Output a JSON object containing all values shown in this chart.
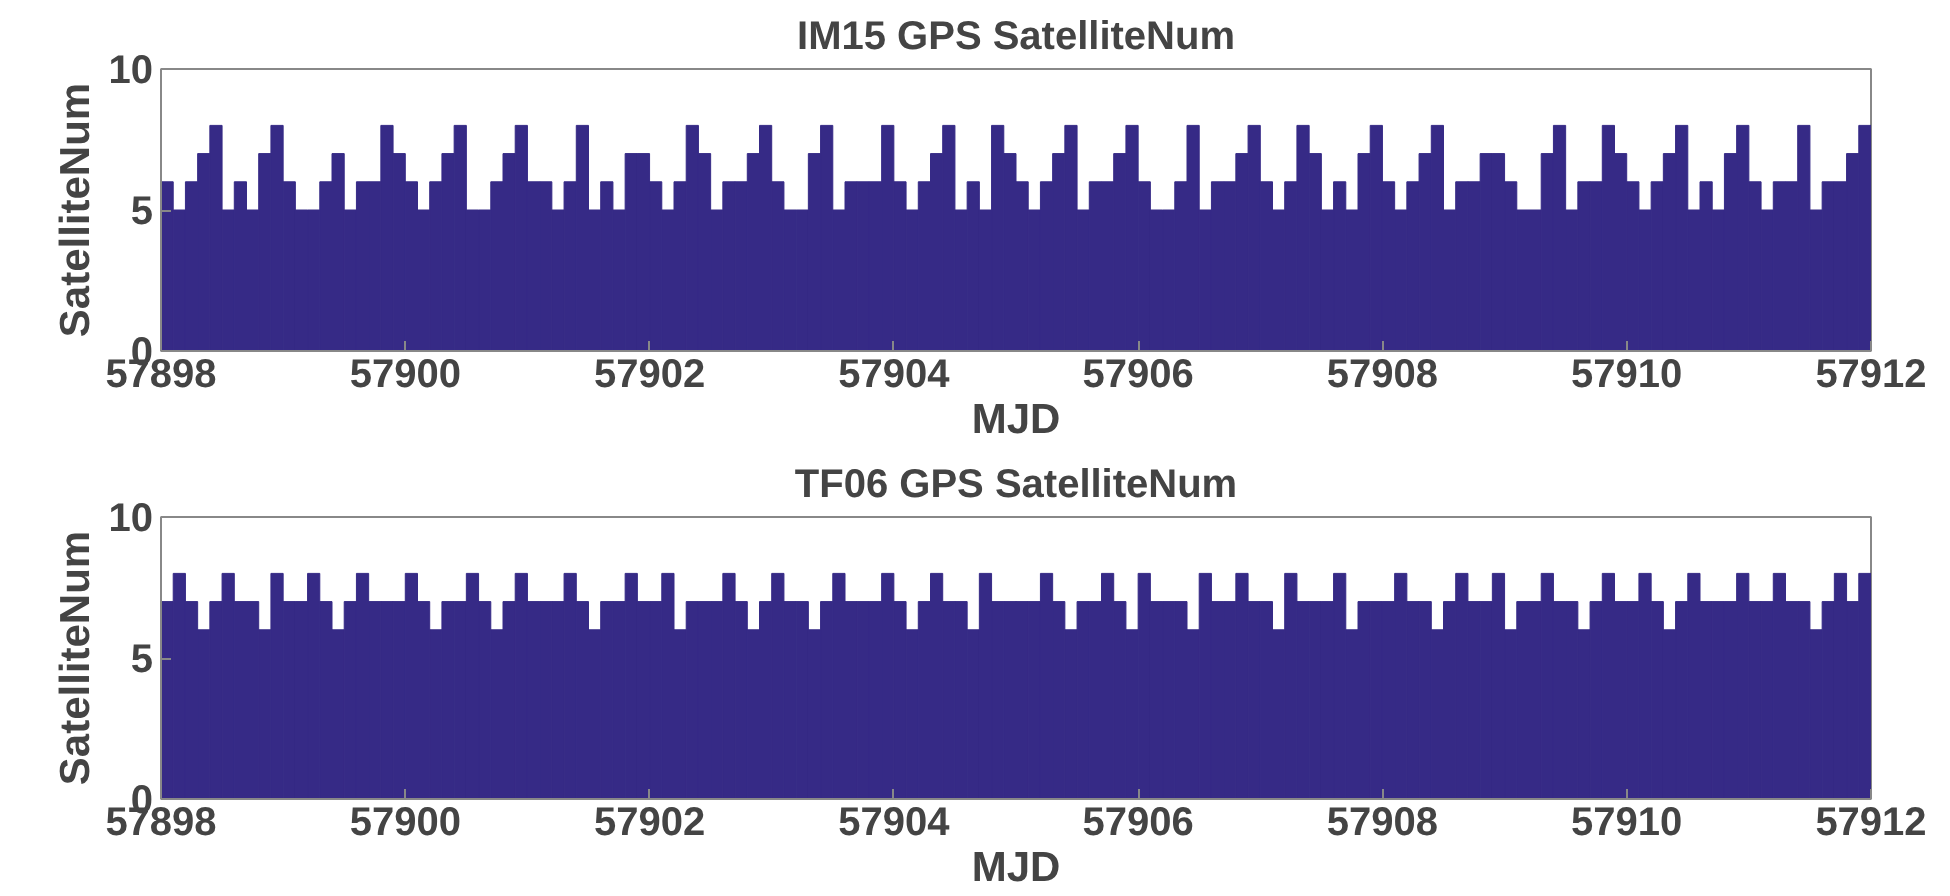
{
  "chart_data": [
    {
      "type": "bar",
      "title": "IM15 GPS SatelliteNum",
      "xlabel": "MJD",
      "ylabel": "SatelliteNum",
      "x": [
        57898.05,
        57898.15,
        57898.25,
        57898.35,
        57898.45,
        57898.55,
        57898.65,
        57898.75,
        57898.85,
        57898.95,
        57899.05,
        57899.15,
        57899.25,
        57899.35,
        57899.45,
        57899.55,
        57899.65,
        57899.75,
        57899.85,
        57899.95,
        57900.05,
        57900.15,
        57900.25,
        57900.35,
        57900.45,
        57900.55,
        57900.65,
        57900.75,
        57900.85,
        57900.95,
        57901.05,
        57901.15,
        57901.25,
        57901.35,
        57901.45,
        57901.55,
        57901.65,
        57901.75,
        57901.85,
        57901.95,
        57902.05,
        57902.15,
        57902.25,
        57902.35,
        57902.45,
        57902.55,
        57902.65,
        57902.75,
        57902.85,
        57902.95,
        57903.05,
        57903.15,
        57903.25,
        57903.35,
        57903.45,
        57903.55,
        57903.65,
        57903.75,
        57903.85,
        57903.95,
        57904.05,
        57904.15,
        57904.25,
        57904.35,
        57904.45,
        57904.55,
        57904.65,
        57904.75,
        57904.85,
        57904.95,
        57905.05,
        57905.15,
        57905.25,
        57905.35,
        57905.45,
        57905.55,
        57905.65,
        57905.75,
        57905.85,
        57905.95,
        57906.05,
        57906.15,
        57906.25,
        57906.35,
        57906.45,
        57906.55,
        57906.65,
        57906.75,
        57906.85,
        57906.95,
        57907.05,
        57907.15,
        57907.25,
        57907.35,
        57907.45,
        57907.55,
        57907.65,
        57907.75,
        57907.85,
        57907.95,
        57908.05,
        57908.15,
        57908.25,
        57908.35,
        57908.45,
        57908.55,
        57908.65,
        57908.75,
        57908.85,
        57908.95,
        57909.05,
        57909.15,
        57909.25,
        57909.35,
        57909.45,
        57909.55,
        57909.65,
        57909.75,
        57909.85,
        57909.95,
        57910.05,
        57910.15,
        57910.25,
        57910.35,
        57910.45,
        57910.55,
        57910.65,
        57910.75,
        57910.85,
        57910.95,
        57911.05,
        57911.15,
        57911.25,
        57911.35,
        57911.45,
        57911.55,
        57911.65,
        57911.75,
        57911.85,
        57911.95
      ],
      "series": [
        {
          "color": "#362a86",
          "values": [
            6,
            5,
            6,
            7,
            8,
            5,
            6,
            5,
            7,
            8,
            6,
            5,
            5,
            6,
            7,
            5,
            6,
            6,
            8,
            7,
            6,
            5,
            6,
            7,
            8,
            5,
            5,
            6,
            7,
            8,
            6,
            6,
            5,
            6,
            8,
            5,
            6,
            5,
            7,
            7,
            6,
            5,
            6,
            8,
            7,
            5,
            6,
            6,
            7,
            8,
            6,
            5,
            5,
            7,
            8,
            5,
            6,
            6,
            6,
            8,
            6,
            5,
            6,
            7,
            8,
            5,
            6,
            5,
            8,
            7,
            6,
            5,
            6,
            7,
            8,
            5,
            6,
            6,
            7,
            8,
            6,
            5,
            5,
            6,
            8,
            5,
            6,
            6,
            7,
            8,
            6,
            5,
            6,
            8,
            7,
            5,
            6,
            5,
            7,
            8,
            6,
            5,
            6,
            7,
            8,
            5,
            6,
            6,
            7,
            7,
            6,
            5,
            5,
            7,
            8,
            5,
            6,
            6,
            8,
            7,
            6,
            5,
            6,
            7,
            8,
            5,
            6,
            5,
            7,
            8,
            6,
            5,
            6,
            6,
            8,
            5,
            6,
            6,
            7,
            8
          ]
        }
      ],
      "xlim": [
        57898,
        57912
      ],
      "xticks": [
        57898,
        57900,
        57902,
        57904,
        57906,
        57908,
        57910,
        57912
      ],
      "ylim": [
        0,
        10
      ],
      "yticks": [
        0,
        5,
        10
      ],
      "grid": false
    },
    {
      "type": "bar",
      "title": "TF06 GPS SatelliteNum",
      "xlabel": "MJD",
      "ylabel": "SatelliteNum",
      "x": [
        57898.05,
        57898.15,
        57898.25,
        57898.35,
        57898.45,
        57898.55,
        57898.65,
        57898.75,
        57898.85,
        57898.95,
        57899.05,
        57899.15,
        57899.25,
        57899.35,
        57899.45,
        57899.55,
        57899.65,
        57899.75,
        57899.85,
        57899.95,
        57900.05,
        57900.15,
        57900.25,
        57900.35,
        57900.45,
        57900.55,
        57900.65,
        57900.75,
        57900.85,
        57900.95,
        57901.05,
        57901.15,
        57901.25,
        57901.35,
        57901.45,
        57901.55,
        57901.65,
        57901.75,
        57901.85,
        57901.95,
        57902.05,
        57902.15,
        57902.25,
        57902.35,
        57902.45,
        57902.55,
        57902.65,
        57902.75,
        57902.85,
        57902.95,
        57903.05,
        57903.15,
        57903.25,
        57903.35,
        57903.45,
        57903.55,
        57903.65,
        57903.75,
        57903.85,
        57903.95,
        57904.05,
        57904.15,
        57904.25,
        57904.35,
        57904.45,
        57904.55,
        57904.65,
        57904.75,
        57904.85,
        57904.95,
        57905.05,
        57905.15,
        57905.25,
        57905.35,
        57905.45,
        57905.55,
        57905.65,
        57905.75,
        57905.85,
        57905.95,
        57906.05,
        57906.15,
        57906.25,
        57906.35,
        57906.45,
        57906.55,
        57906.65,
        57906.75,
        57906.85,
        57906.95,
        57907.05,
        57907.15,
        57907.25,
        57907.35,
        57907.45,
        57907.55,
        57907.65,
        57907.75,
        57907.85,
        57907.95,
        57908.05,
        57908.15,
        57908.25,
        57908.35,
        57908.45,
        57908.55,
        57908.65,
        57908.75,
        57908.85,
        57908.95,
        57909.05,
        57909.15,
        57909.25,
        57909.35,
        57909.45,
        57909.55,
        57909.65,
        57909.75,
        57909.85,
        57909.95,
        57910.05,
        57910.15,
        57910.25,
        57910.35,
        57910.45,
        57910.55,
        57910.65,
        57910.75,
        57910.85,
        57910.95,
        57911.05,
        57911.15,
        57911.25,
        57911.35,
        57911.45,
        57911.55,
        57911.65,
        57911.75,
        57911.85,
        57911.95
      ],
      "series": [
        {
          "color": "#362a86",
          "values": [
            7,
            8,
            7,
            6,
            7,
            8,
            7,
            7,
            6,
            8,
            7,
            7,
            8,
            7,
            6,
            7,
            8,
            7,
            7,
            7,
            8,
            7,
            6,
            7,
            7,
            8,
            7,
            6,
            7,
            8,
            7,
            7,
            7,
            8,
            7,
            6,
            7,
            7,
            8,
            7,
            7,
            8,
            6,
            7,
            7,
            7,
            8,
            7,
            6,
            7,
            8,
            7,
            7,
            6,
            7,
            8,
            7,
            7,
            7,
            8,
            7,
            6,
            7,
            8,
            7,
            7,
            6,
            8,
            7,
            7,
            7,
            7,
            8,
            7,
            6,
            7,
            7,
            8,
            7,
            6,
            8,
            7,
            7,
            7,
            6,
            8,
            7,
            7,
            8,
            7,
            7,
            6,
            8,
            7,
            7,
            7,
            8,
            6,
            7,
            7,
            7,
            8,
            7,
            7,
            6,
            7,
            8,
            7,
            7,
            8,
            6,
            7,
            7,
            8,
            7,
            7,
            6,
            7,
            8,
            7,
            7,
            8,
            7,
            6,
            7,
            8,
            7,
            7,
            7,
            8,
            7,
            7,
            8,
            7,
            7,
            6,
            7,
            8,
            7,
            8
          ]
        }
      ],
      "xlim": [
        57898,
        57912
      ],
      "xticks": [
        57898,
        57900,
        57902,
        57904,
        57906,
        57908,
        57910,
        57912
      ],
      "ylim": [
        0,
        10
      ],
      "yticks": [
        0,
        5,
        10
      ],
      "grid": false
    }
  ]
}
